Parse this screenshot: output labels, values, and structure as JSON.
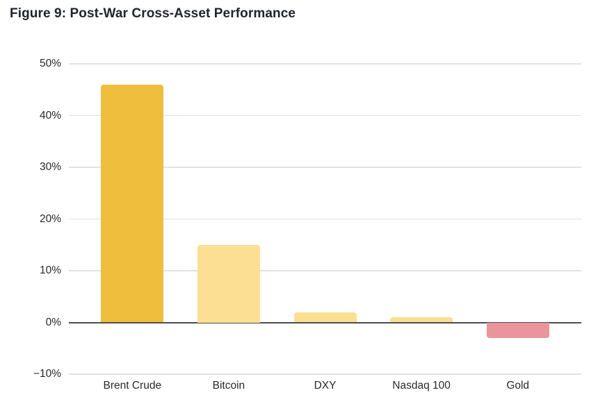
{
  "title": "Figure 9: Post-War Cross-Asset Performance",
  "colors": {
    "accent_gold": "#EEBE3C",
    "light_yellow": "#FCDF92",
    "negative_pink": "#E9959B",
    "gridline": "#E1E1E1",
    "zero_line": "#4C4C4C",
    "text": "#26282C",
    "title_text": "#20242B",
    "background": "#FFFFFF"
  },
  "chart_data": {
    "type": "bar",
    "title": "Figure 9: Post-War Cross-Asset Performance",
    "categories": [
      "Brent Crude",
      "Bitcoin",
      "DXY",
      "Nasdaq 100",
      "Gold"
    ],
    "values": [
      46,
      15,
      2,
      1,
      -3
    ],
    "unit": "%",
    "xlabel": "",
    "ylabel": "",
    "ylim": [
      -10,
      50
    ],
    "yticks": [
      50,
      40,
      30,
      20,
      10,
      0,
      -10
    ],
    "ytick_labels": [
      "50%",
      "40%",
      "30%",
      "20%",
      "10%",
      "0%",
      "−10%"
    ],
    "grid": true,
    "legend": false,
    "bar_colors": [
      "#EEBE3C",
      "#FCDF92",
      "#FCDF92",
      "#FCDF92",
      "#E9959B"
    ]
  }
}
